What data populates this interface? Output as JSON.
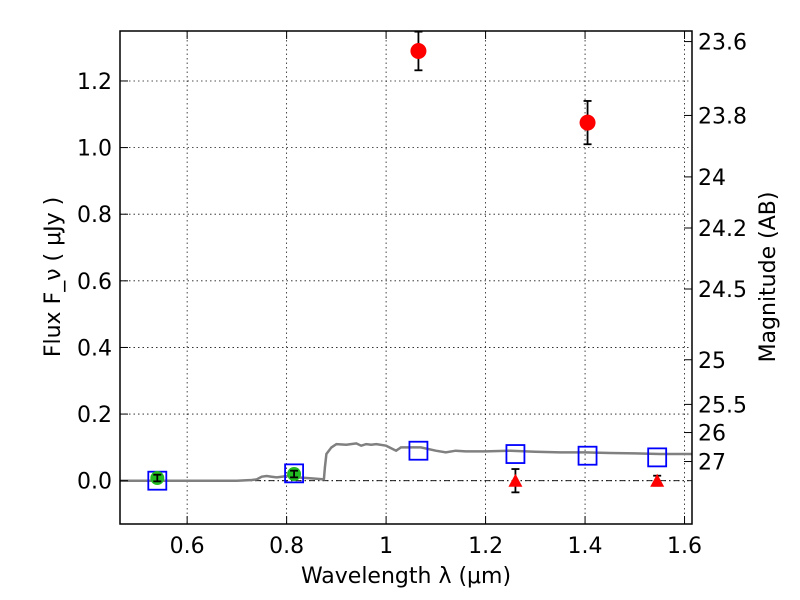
{
  "chart_data": {
    "type": "scatter",
    "xlabel": "Wavelength  λ (μm)",
    "ylabel": "Flux  F_ν  ( μJy )",
    "ylabel_right": "Magnitude (AB)",
    "xlim": [
      0.465,
      1.615
    ],
    "ylim": [
      -0.13,
      1.35
    ],
    "x_ticks": [
      0.6,
      0.8,
      1.0,
      1.2,
      1.4,
      1.6
    ],
    "x_tick_labels": [
      "0.6",
      "0.8",
      "1",
      "1.2",
      "1.4",
      "1.6"
    ],
    "y_ticks": [
      0.0,
      0.2,
      0.4,
      0.6,
      0.8,
      1.0,
      1.2
    ],
    "y_tick_labels": [
      "0.0",
      "0.2",
      "0.4",
      "0.6",
      "0.8",
      "1.0",
      "1.2"
    ],
    "right_ticks": [
      {
        "label": "23.6",
        "mag": 23.6
      },
      {
        "label": "23.8",
        "mag": 23.8
      },
      {
        "label": "24",
        "mag": 24.0
      },
      {
        "label": "24.2",
        "mag": 24.2
      },
      {
        "label": "24.5",
        "mag": 24.5
      },
      {
        "label": "25",
        "mag": 25.0
      },
      {
        "label": "25.5",
        "mag": 25.5
      },
      {
        "label": "26",
        "mag": 26.0
      },
      {
        "label": "27",
        "mag": 27.0
      }
    ],
    "grid": true,
    "zero_line": true,
    "colors": {
      "model": "#808080",
      "detection": "#ff0000",
      "upper_limit": "#ff0000",
      "green_point": "#22bb22",
      "model_flux": "#0000ff",
      "errorbar": "#000000"
    },
    "series": [
      {
        "kind": "model-sed-line",
        "x": [
          0.465,
          0.55,
          0.6,
          0.65,
          0.7,
          0.73,
          0.74,
          0.745,
          0.75,
          0.76,
          0.77,
          0.78,
          0.79,
          0.8,
          0.82,
          0.84,
          0.86,
          0.875,
          0.877,
          0.88,
          0.89,
          0.9,
          0.92,
          0.94,
          0.95,
          0.96,
          0.97,
          0.98,
          1.0,
          1.02,
          1.03,
          1.04,
          1.05,
          1.07,
          1.1,
          1.12,
          1.14,
          1.16,
          1.2,
          1.25,
          1.3,
          1.35,
          1.4,
          1.45,
          1.5,
          1.55,
          1.6,
          1.615
        ],
        "y": [
          0.0,
          0.0,
          0.0,
          0.0,
          0.0,
          0.002,
          0.004,
          0.008,
          0.012,
          0.014,
          0.012,
          0.01,
          0.012,
          0.014,
          0.01,
          0.008,
          0.006,
          0.004,
          0.04,
          0.08,
          0.1,
          0.11,
          0.108,
          0.112,
          0.105,
          0.11,
          0.108,
          0.11,
          0.105,
          0.09,
          0.1,
          0.1,
          0.1,
          0.1,
          0.09,
          0.085,
          0.09,
          0.088,
          0.088,
          0.09,
          0.087,
          0.085,
          0.085,
          0.083,
          0.082,
          0.08,
          0.08,
          0.08
        ]
      },
      {
        "kind": "model-flux-squares",
        "x": [
          0.54,
          0.815,
          1.065,
          1.26,
          1.405,
          1.545
        ],
        "y": [
          0.0,
          0.022,
          0.09,
          0.08,
          0.075,
          0.07
        ]
      },
      {
        "kind": "detections",
        "x": [
          1.065,
          1.405
        ],
        "y": [
          1.29,
          1.075
        ],
        "err": [
          0.058,
          0.065
        ]
      },
      {
        "kind": "upper-limits",
        "x": [
          1.26,
          1.545
        ],
        "y": [
          0.0,
          0.0
        ],
        "err": [
          0.035,
          0.015
        ]
      },
      {
        "kind": "green-points",
        "x": [
          0.54,
          0.815
        ],
        "y": [
          0.008,
          0.02
        ],
        "err": [
          0.01,
          0.01
        ]
      }
    ]
  }
}
